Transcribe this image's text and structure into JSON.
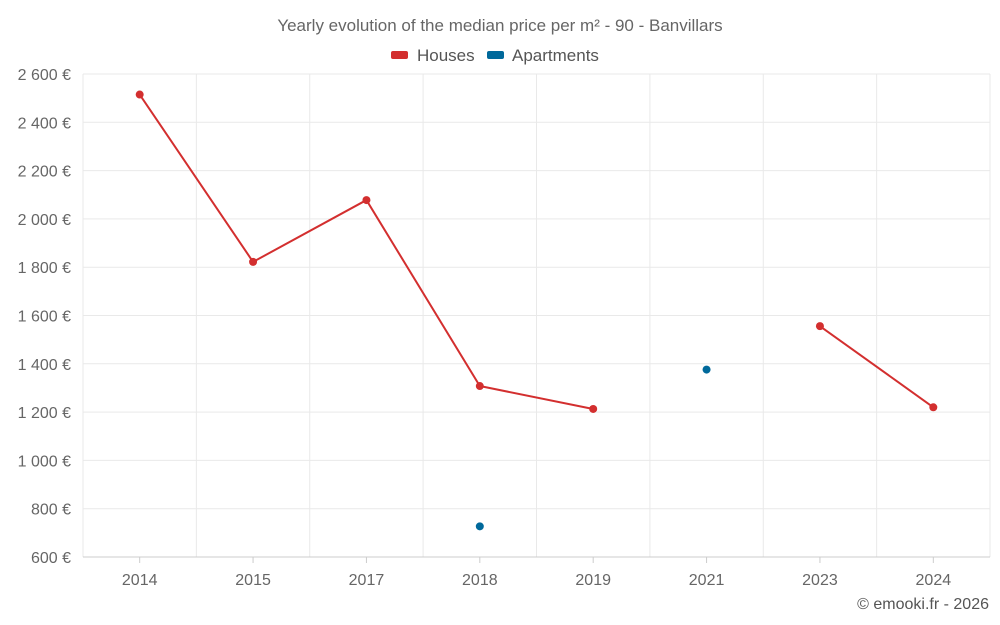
{
  "chart_data": {
    "type": "line",
    "title": "Yearly evolution of the median price per m² - 90 - Banvillars",
    "categories": [
      "2014",
      "2015",
      "2017",
      "2018",
      "2019",
      "2021",
      "2023",
      "2024"
    ],
    "series": [
      {
        "name": "Houses",
        "color": "#d32f2f",
        "values": [
          2515,
          1822,
          2078,
          1308,
          1213,
          null,
          1556,
          1220
        ]
      },
      {
        "name": "Apartments",
        "color": "#00699b",
        "values": [
          null,
          null,
          null,
          727,
          null,
          1376,
          null,
          null
        ]
      }
    ],
    "ylim": [
      600,
      2600
    ],
    "yticks": [
      600,
      800,
      1000,
      1200,
      1400,
      1600,
      1800,
      2000,
      2200,
      2400,
      2600
    ],
    "ytick_labels": [
      "600 €",
      "800 €",
      "1 000 €",
      "1 200 €",
      "1 400 €",
      "1 600 €",
      "1 800 €",
      "2 000 €",
      "2 200 €",
      "2 400 €",
      "2 600 €"
    ],
    "xlabel": "",
    "ylabel": "",
    "grid": true,
    "legend_position": "top-center",
    "credit": "© emooki.fr - 2026"
  }
}
